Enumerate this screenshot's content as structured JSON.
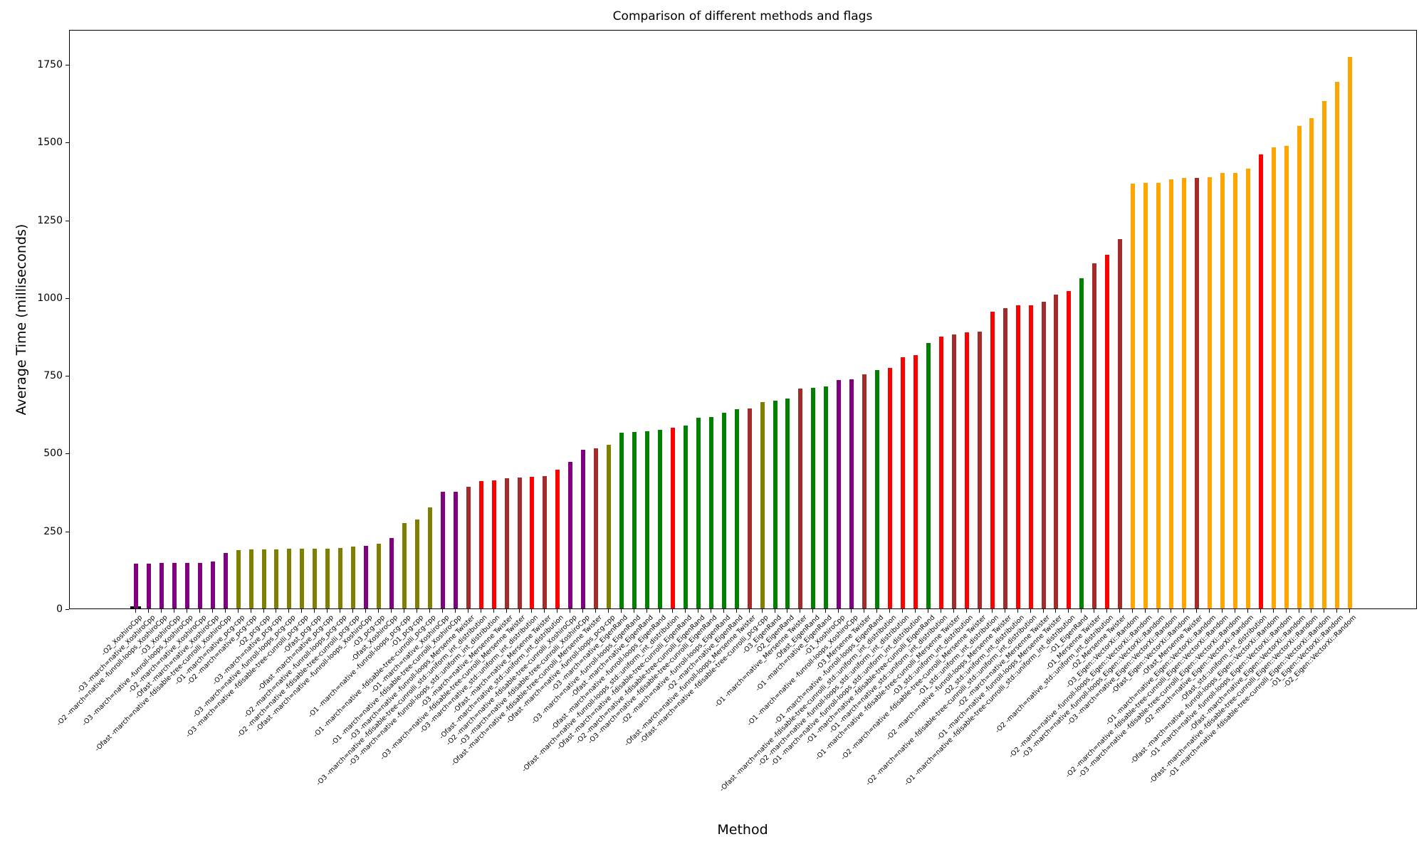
{
  "chart_data": {
    "type": "bar",
    "title": "Comparison of different methods and flags",
    "xlabel": "Method",
    "ylabel": "Average Time (milliseconds)",
    "ylim": [
      0,
      1862
    ],
    "yticks": [
      0,
      250,
      500,
      750,
      1000,
      1250,
      1500,
      1750
    ],
    "grid": false,
    "legend": "none",
    "bar_color_by_method": {
      "XoshiroCpp": "#800080",
      "pcg-cpp": "#808000",
      "Mersenne Twister": "#A52A2A",
      "std::uniform_int_distribution": "#FF0000",
      "EigenRand": "#008000",
      "Eigen::VectorXi::Random": "#FFA500"
    },
    "artifact_bar": {
      "value": 7,
      "color": "#000000"
    },
    "bars": [
      {
        "label": "-O2_XoshiroCpp",
        "method": "XoshiroCpp",
        "value": 145
      },
      {
        "label": "-O3 -march=native_XoshiroCpp",
        "method": "XoshiroCpp",
        "value": 145
      },
      {
        "label": "-O2 -march=native -funroll-loops_XoshiroCpp",
        "method": "XoshiroCpp",
        "value": 146
      },
      {
        "label": "-O3_XoshiroCpp",
        "method": "XoshiroCpp",
        "value": 146
      },
      {
        "label": "-O3 -march=native -funroll-loops_XoshiroCpp",
        "method": "XoshiroCpp",
        "value": 146
      },
      {
        "label": "-O2 -march=native_XoshiroCpp",
        "method": "XoshiroCpp",
        "value": 147
      },
      {
        "label": "-Ofast -march=native_XoshiroCpp",
        "method": "XoshiroCpp",
        "value": 150
      },
      {
        "label": "-Ofast -march=native -fdisable-tree-cunrolli_XoshiroCpp",
        "method": "XoshiroCpp",
        "value": 178
      },
      {
        "label": "-O1 -march=native_pcg-cpp",
        "method": "pcg-cpp",
        "value": 188
      },
      {
        "label": "-O2 -march=native_pcg-cpp",
        "method": "pcg-cpp",
        "value": 190
      },
      {
        "label": "-O2_pcg-cpp",
        "method": "pcg-cpp",
        "value": 191
      },
      {
        "label": "-O3 -march=native_pcg-cpp",
        "method": "pcg-cpp",
        "value": 191
      },
      {
        "label": "-O3 -march=native -funroll-loops_pcg-cpp",
        "method": "pcg-cpp",
        "value": 192
      },
      {
        "label": "-O3 -march=native -fdisable-tree-cunrolli_pcg-cpp",
        "method": "pcg-cpp",
        "value": 192
      },
      {
        "label": "-Ofast_pcg-cpp",
        "method": "pcg-cpp",
        "value": 193
      },
      {
        "label": "-Ofast -march=native_pcg-cpp",
        "method": "pcg-cpp",
        "value": 193
      },
      {
        "label": "-O2 -march=native -funroll-loops_pcg-cpp",
        "method": "pcg-cpp",
        "value": 194
      },
      {
        "label": "-O2 -march=native -fdisable-tree-cunrolli_pcg-cpp",
        "method": "pcg-cpp",
        "value": 198
      },
      {
        "label": "-Ofast -march=native -funroll-loops_XoshiroCpp",
        "method": "XoshiroCpp",
        "value": 202
      },
      {
        "label": "-O3_pcg-cpp",
        "method": "pcg-cpp",
        "value": 208
      },
      {
        "label": "-Ofast_XoshiroCpp",
        "method": "XoshiroCpp",
        "value": 226
      },
      {
        "label": "-O1 -march=native -funroll-loops_pcg-cpp",
        "method": "pcg-cpp",
        "value": 274
      },
      {
        "label": "-O1_pcg-cpp",
        "method": "pcg-cpp",
        "value": 287
      },
      {
        "label": "-O1 -march=native -fdisable-tree-cunrolli_pcg-cpp",
        "method": "pcg-cpp",
        "value": 325
      },
      {
        "label": "-O1 -march=native_XoshiroCpp",
        "method": "XoshiroCpp",
        "value": 375
      },
      {
        "label": "-O1 -march=native -fdisable-tree-cunrolli_XoshiroCpp",
        "method": "XoshiroCpp",
        "value": 375
      },
      {
        "label": "-O3 -march=native -funroll-loops_Mersenne Twister",
        "method": "Mersenne Twister",
        "value": 391
      },
      {
        "label": "-O3 -march=native -fdisable-tree-cunrolli_std::uniform_int_distribution",
        "method": "std::uniform_int_distribution",
        "value": 410
      },
      {
        "label": "-O3 -march=native -funroll-loops_std::uniform_int_distribution",
        "method": "std::uniform_int_distribution",
        "value": 412
      },
      {
        "label": "-O3 -march=native_Mersenne Twister",
        "method": "Mersenne Twister",
        "value": 419
      },
      {
        "label": "-O3 -march=native -fdisable-tree-cunrolli_Mersenne Twister",
        "method": "Mersenne Twister",
        "value": 421
      },
      {
        "label": "-O3 -march=native_std::uniform_int_distribution",
        "method": "std::uniform_int_distribution",
        "value": 423
      },
      {
        "label": "-Ofast -march=native_Mersenne Twister",
        "method": "Mersenne Twister",
        "value": 426
      },
      {
        "label": "-Ofast -march=native_std::uniform_int_distribution",
        "method": "std::uniform_int_distribution",
        "value": 447
      },
      {
        "label": "-O2 -march=native -fdisable-tree-cunrolli_XoshiroCpp",
        "method": "XoshiroCpp",
        "value": 472
      },
      {
        "label": "-O3 -march=native -fdisable-tree-cunrolli_XoshiroCpp",
        "method": "XoshiroCpp",
        "value": 511
      },
      {
        "label": "-Ofast -march=native -fdisable-tree-cunrolli_Mersenne Twister",
        "method": "Mersenne Twister",
        "value": 515
      },
      {
        "label": "-Ofast -march=native -funroll-loops_pcg-cpp",
        "method": "pcg-cpp",
        "value": 526
      },
      {
        "label": "-O3 -march=native_EigenRand",
        "method": "EigenRand",
        "value": 566
      },
      {
        "label": "-O3 -march=native -funroll-loops_EigenRand",
        "method": "EigenRand",
        "value": 567
      },
      {
        "label": "-Ofast -march=native_EigenRand",
        "method": "EigenRand",
        "value": 570
      },
      {
        "label": "-Ofast -march=native -funroll-loops_EigenRand",
        "method": "EigenRand",
        "value": 574
      },
      {
        "label": "-Ofast -march=native -funroll-loops_std::uniform_int_distribution",
        "method": "std::uniform_int_distribution",
        "value": 580
      },
      {
        "label": "-Ofast -march=native -fdisable-tree-cunrolli_EigenRand",
        "method": "EigenRand",
        "value": 587
      },
      {
        "label": "-O2 -march=native -fdisable-tree-cunrolli_EigenRand",
        "method": "EigenRand",
        "value": 613
      },
      {
        "label": "-O3 -march=native -fdisable-tree-cunrolli_EigenRand",
        "method": "EigenRand",
        "value": 616
      },
      {
        "label": "-O2 -march=native -funroll-loops_EigenRand",
        "method": "EigenRand",
        "value": 629
      },
      {
        "label": "-O2 -march=native_EigenRand",
        "method": "EigenRand",
        "value": 641
      },
      {
        "label": "-Ofast -march=native -funroll-loops_Mersenne Twister",
        "method": "Mersenne Twister",
        "value": 642
      },
      {
        "label": "-Ofast -march=native -fdisable-tree-cunrolli_pcg-cpp",
        "method": "pcg-cpp",
        "value": 664
      },
      {
        "label": "-O3_EigenRand",
        "method": "EigenRand",
        "value": 668
      },
      {
        "label": "-O2_EigenRand",
        "method": "EigenRand",
        "value": 676
      },
      {
        "label": "-O1 -march=native_Mersenne Twister",
        "method": "Mersenne Twister",
        "value": 707
      },
      {
        "label": "-Ofast_EigenRand",
        "method": "EigenRand",
        "value": 710
      },
      {
        "label": "-O1 -march=native_EigenRand",
        "method": "EigenRand",
        "value": 714
      },
      {
        "label": "-O1_XoshiroCpp",
        "method": "XoshiroCpp",
        "value": 734
      },
      {
        "label": "-O1 -march=native -funroll-loops_XoshiroCpp",
        "method": "XoshiroCpp",
        "value": 736
      },
      {
        "label": "-O3_Mersenne Twister",
        "method": "Mersenne Twister",
        "value": 753
      },
      {
        "label": "-O1 -march=native -funroll-loops_EigenRand",
        "method": "EigenRand",
        "value": 766
      },
      {
        "label": "-Ofast -march=native -fdisable-tree-cunrolli_std::uniform_int_distribution",
        "method": "std::uniform_int_distribution",
        "value": 774
      },
      {
        "label": "-O2 -march=native -funroll-loops_std::uniform_int_distribution",
        "method": "std::uniform_int_distribution",
        "value": 807
      },
      {
        "label": "-O1 -march=native -funroll-loops_std::uniform_int_distribution",
        "method": "std::uniform_int_distribution",
        "value": 814
      },
      {
        "label": "-O1 -march=native -fdisable-tree-cunrolli_EigenRand",
        "method": "EigenRand",
        "value": 854
      },
      {
        "label": "-O1 -march=native_std::uniform_int_distribution",
        "method": "std::uniform_int_distribution",
        "value": 874
      },
      {
        "label": "-O1 -march=native -fdisable-tree-cunrolli_Mersenne Twister",
        "method": "Mersenne Twister",
        "value": 881
      },
      {
        "label": "-O3_std::uniform_int_distribution",
        "method": "std::uniform_int_distribution",
        "value": 888
      },
      {
        "label": "-O2 -march=native -fdisable-tree-cunrolli_Mersenne Twister",
        "method": "Mersenne Twister",
        "value": 891
      },
      {
        "label": "-O1_std::uniform_int_distribution",
        "method": "std::uniform_int_distribution",
        "value": 953
      },
      {
        "label": "-O2 -march=native -funroll-loops_Mersenne Twister",
        "method": "Mersenne Twister",
        "value": 965
      },
      {
        "label": "-O2_std::uniform_int_distribution",
        "method": "std::uniform_int_distribution",
        "value": 974
      },
      {
        "label": "-O2 -march=native -fdisable-tree-cunrolli_std::uniform_int_distribution",
        "method": "std::uniform_int_distribution",
        "value": 975
      },
      {
        "label": "-O2 -march=native_Mersenne Twister",
        "method": "Mersenne Twister",
        "value": 985
      },
      {
        "label": "-O1 -march=native -funroll-loops_Mersenne Twister",
        "method": "Mersenne Twister",
        "value": 1008
      },
      {
        "label": "-O1 -march=native -fdisable-tree-cunrolli_std::uniform_int_distribution",
        "method": "std::uniform_int_distribution",
        "value": 1020
      },
      {
        "label": "-O1_EigenRand",
        "method": "EigenRand",
        "value": 1061
      },
      {
        "label": "-O1_Mersenne Twister",
        "method": "Mersenne Twister",
        "value": 1110
      },
      {
        "label": "-O2 -march=native_std::uniform_int_distribution",
        "method": "std::uniform_int_distribution",
        "value": 1136
      },
      {
        "label": "-O2_Mersenne Twister",
        "method": "Mersenne Twister",
        "value": 1188
      },
      {
        "label": "-O3_Eigen::VectorXi::Random",
        "method": "Eigen::VectorXi::Random",
        "value": 1365
      },
      {
        "label": "-O2 -march=native -funroll-loops_Eigen::VectorXi::Random",
        "method": "Eigen::VectorXi::Random",
        "value": 1367
      },
      {
        "label": "-O3 -march=native -funroll-loops_Eigen::VectorXi::Random",
        "method": "Eigen::VectorXi::Random",
        "value": 1368
      },
      {
        "label": "-O3 -march=native_Eigen::VectorXi::Random",
        "method": "Eigen::VectorXi::Random",
        "value": 1380
      },
      {
        "label": "-Ofast_Eigen::VectorXi::Random",
        "method": "Eigen::VectorXi::Random",
        "value": 1384
      },
      {
        "label": "-Ofast_Mersenne Twister",
        "method": "Mersenne Twister",
        "value": 1385
      },
      {
        "label": "-O1 -march=native_Eigen::VectorXi::Random",
        "method": "Eigen::VectorXi::Random",
        "value": 1386
      },
      {
        "label": "-O2 -march=native -fdisable-tree-cunrolli_Eigen::VectorXi::Random",
        "method": "Eigen::VectorXi::Random",
        "value": 1399
      },
      {
        "label": "-O3 -march=native -fdisable-tree-cunrolli_Eigen::VectorXi::Random",
        "method": "Eigen::VectorXi::Random",
        "value": 1400
      },
      {
        "label": "-O2 -march=native_Eigen::VectorXi::Random",
        "method": "Eigen::VectorXi::Random",
        "value": 1414
      },
      {
        "label": "-Ofast_std::uniform_int_distribution",
        "method": "std::uniform_int_distribution",
        "value": 1460
      },
      {
        "label": "-Ofast -march=native -funroll-loops_Eigen::VectorXi::Random",
        "method": "Eigen::VectorXi::Random",
        "value": 1482
      },
      {
        "label": "-O1 -march=native -funroll-loops_Eigen::VectorXi::Random",
        "method": "Eigen::VectorXi::Random",
        "value": 1487
      },
      {
        "label": "-Ofast -march=native_Eigen::VectorXi::Random",
        "method": "Eigen::VectorXi::Random",
        "value": 1550
      },
      {
        "label": "-Ofast -march=native -fdisable-tree-cunrolli_Eigen::VectorXi::Random",
        "method": "Eigen::VectorXi::Random",
        "value": 1576
      },
      {
        "label": "-O1 -march=native -fdisable-tree-cunrolli_Eigen::VectorXi::Random",
        "method": "Eigen::VectorXi::Random",
        "value": 1630
      },
      {
        "label": "-O1_Eigen::VectorXi::Random",
        "method": "Eigen::VectorXi::Random",
        "value": 1692
      },
      {
        "label": "-O2_Eigen::VectorXi::Random",
        "method": "Eigen::VectorXi::Random",
        "value": 1773
      }
    ]
  }
}
